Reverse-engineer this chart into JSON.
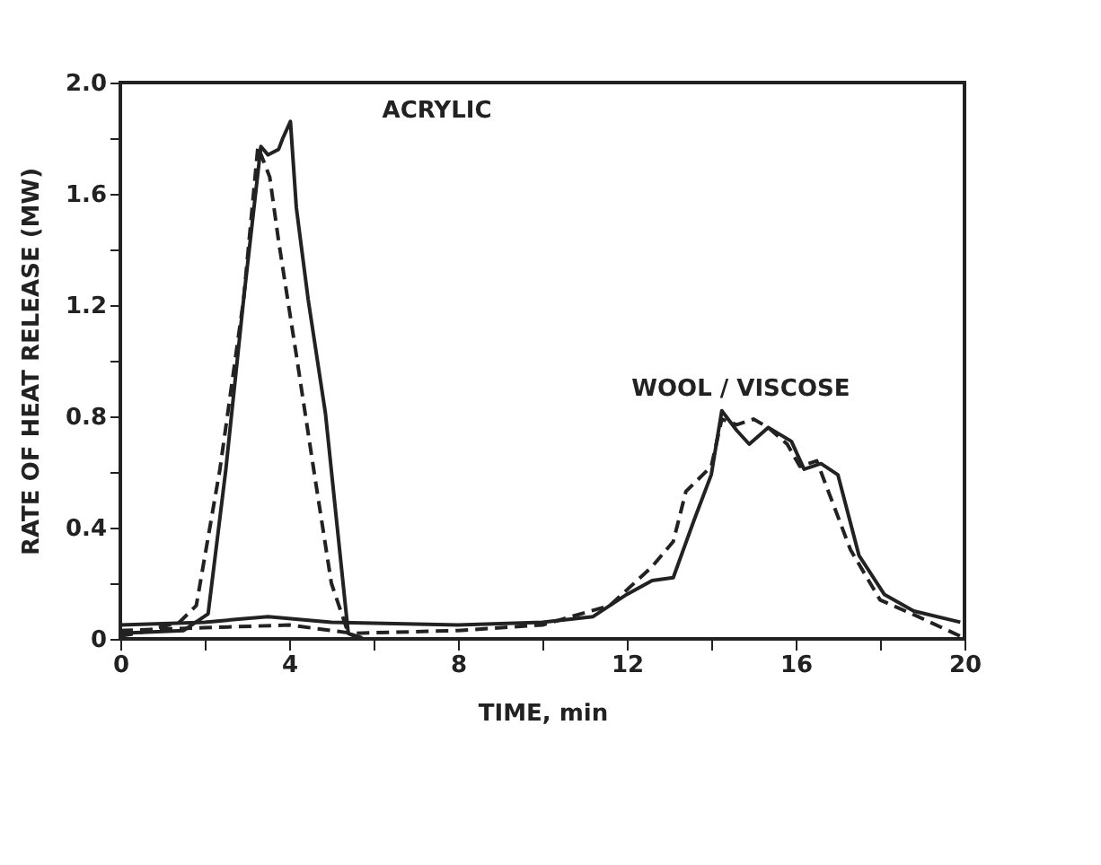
{
  "chart_data": {
    "type": "line",
    "xlabel": "TIME, min",
    "ylabel": "RATE OF HEAT RELEASE (MW)",
    "xlim": [
      0,
      20
    ],
    "ylim": [
      0,
      2.0
    ],
    "xticks": [
      0,
      {
        "value": 2,
        "label": null
      },
      4,
      {
        "value": 6,
        "label": null
      },
      8,
      {
        "value": 10,
        "label": null
      },
      12,
      {
        "value": 14,
        "label": null
      },
      16,
      {
        "value": 18,
        "label": null
      },
      20
    ],
    "yticks": [
      0,
      {
        "value": 0.2,
        "label": null
      },
      0.4,
      {
        "value": 0.6,
        "label": null
      },
      0.8,
      {
        "value": 1.0,
        "label": null
      },
      1.2,
      {
        "value": 1.4,
        "label": null
      },
      1.6,
      {
        "value": 1.8,
        "label": null
      },
      {
        "value": 2.0,
        "label": "2.0"
      }
    ],
    "grid": false,
    "marker": "none",
    "annotations": [
      "ACRYLIC",
      "WOOL / VISCOSE"
    ],
    "series": [
      {
        "color": "#222222",
        "line_style": "solid",
        "x": [
          0,
          1.5,
          2.08,
          2.5,
          2.92,
          3.33,
          3.5,
          3.75,
          3.85,
          4.03,
          4.17,
          4.45,
          4.86,
          5.14,
          5.4,
          5.7
        ],
        "values": [
          0.02,
          0.03,
          0.09,
          0.61,
          1.22,
          1.77,
          1.74,
          1.76,
          1.8,
          1.86,
          1.55,
          1.22,
          0.81,
          0.4,
          0.02,
          0.0
        ]
      },
      {
        "color": "#222222",
        "line_style": "dashed",
        "x": [
          0,
          0.4,
          1.4,
          1.8,
          2.36,
          2.92,
          3.26,
          3.54,
          3.75,
          4.17,
          4.58,
          5.0,
          5.4,
          5.8
        ],
        "values": [
          0.01,
          0.02,
          0.06,
          0.12,
          0.61,
          1.22,
          1.77,
          1.66,
          1.43,
          1.02,
          0.61,
          0.2,
          0.02,
          0.0
        ]
      },
      {
        "color": "#222222",
        "line_style": "solid",
        "x": [
          0,
          2,
          3.5,
          5,
          8,
          10,
          11.2,
          12.0,
          12.6,
          13.1,
          13.6,
          14.0,
          14.25,
          14.6,
          14.9,
          15.35,
          15.9,
          16.2,
          16.6,
          17.0,
          17.5,
          18.1,
          18.8,
          19.9
        ],
        "values": [
          0.05,
          0.06,
          0.08,
          0.06,
          0.05,
          0.06,
          0.08,
          0.16,
          0.21,
          0.22,
          0.43,
          0.59,
          0.82,
          0.75,
          0.7,
          0.76,
          0.71,
          0.61,
          0.63,
          0.59,
          0.3,
          0.16,
          0.1,
          0.06
        ]
      },
      {
        "color": "#222222",
        "line_style": "dashed",
        "x": [
          0,
          2,
          4,
          5.5,
          8,
          10,
          11.6,
          12.6,
          13.1,
          13.4,
          14.0,
          14.25,
          14.6,
          15.0,
          15.35,
          15.8,
          16.1,
          16.5,
          17.3,
          18.0,
          18.9,
          19.9
        ],
        "values": [
          0.03,
          0.04,
          0.05,
          0.02,
          0.03,
          0.05,
          0.12,
          0.26,
          0.35,
          0.53,
          0.62,
          0.79,
          0.77,
          0.79,
          0.76,
          0.7,
          0.62,
          0.64,
          0.32,
          0.14,
          0.08,
          0.01
        ]
      }
    ]
  }
}
